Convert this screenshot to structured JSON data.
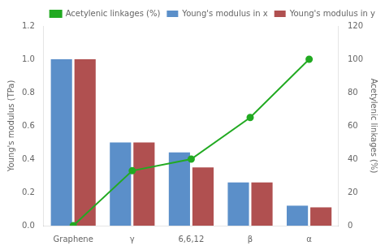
{
  "chart_data": {
    "type": "bar",
    "categories": [
      "Graphene",
      "γ",
      "6,6,12",
      "β",
      "α"
    ],
    "series": [
      {
        "name": "Young's modulus in x",
        "color": "#5B8FC9",
        "values": [
          1.0,
          0.5,
          0.44,
          0.26,
          0.12
        ]
      },
      {
        "name": "Young's modulus in y",
        "color": "#B05050",
        "values": [
          1.0,
          0.5,
          0.35,
          0.26,
          0.11
        ]
      },
      {
        "name": "Acetylenic linkages (%)",
        "type": "line",
        "axis": "y2",
        "color": "#22AA22",
        "marker": "circle",
        "values": [
          0,
          33,
          40,
          65,
          100
        ]
      }
    ],
    "ylabel": "Young's modulus (TPa)",
    "y2label": "Acetylenic linkages (%)",
    "ylim": [
      0,
      1.2
    ],
    "yticks": [
      {
        "value": 0,
        "label": "0.0"
      },
      0.2,
      0.4,
      0.6,
      0.8,
      {
        "value": 1.0,
        "label": "1.0"
      },
      1.2
    ],
    "y2lim": [
      0,
      120
    ],
    "y2ticks": [
      0,
      20,
      40,
      60,
      80,
      100,
      120
    ],
    "legend": "upper right",
    "grid": false
  }
}
